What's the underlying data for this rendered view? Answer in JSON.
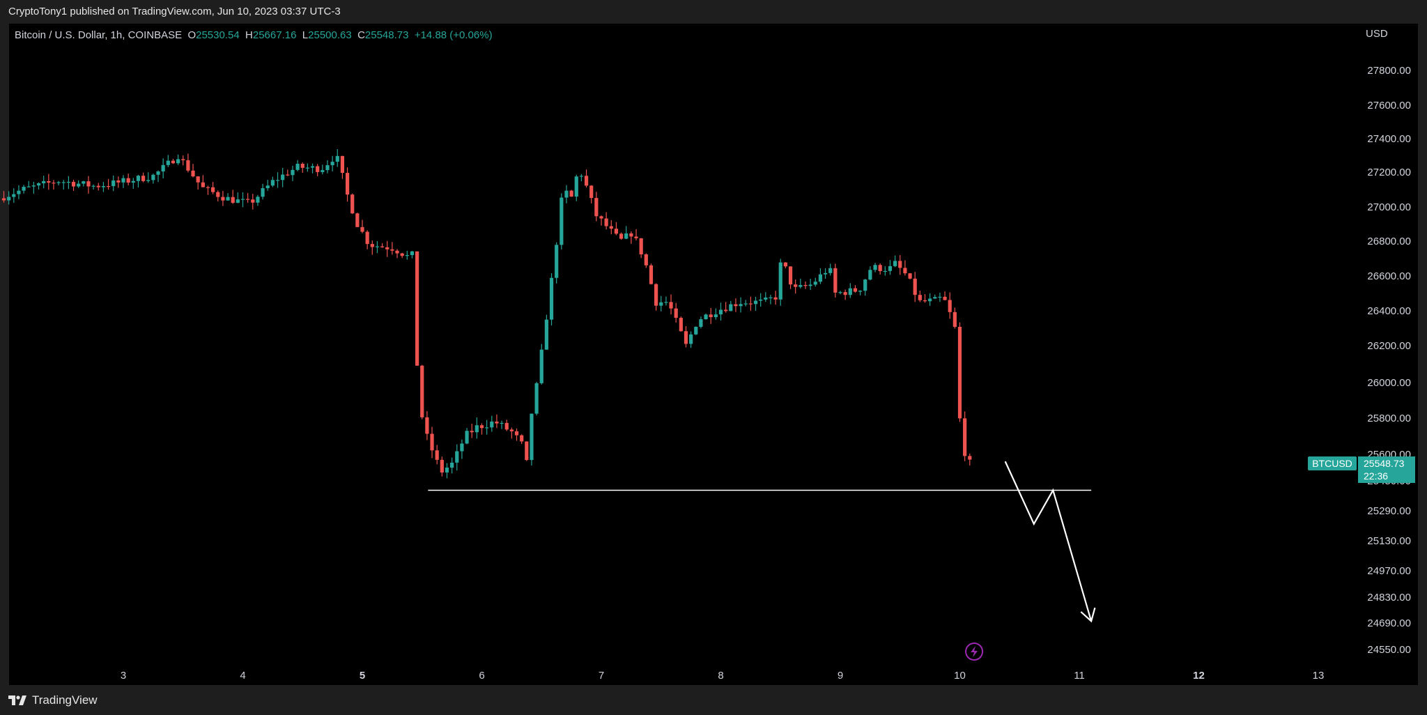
{
  "header": {
    "published_text": "CryptoTony1 published on TradingView.com, Jun 10, 2023 03:37 UTC-3"
  },
  "legend": {
    "symbol": "Bitcoin / U.S. Dollar, 1h, COINBASE",
    "o_label": "O",
    "o_value": "25530.54",
    "h_label": "H",
    "h_value": "25667.16",
    "l_label": "L",
    "l_value": "25500.63",
    "c_label": "C",
    "c_value": "25548.73",
    "change": "+14.88 (+0.06%)"
  },
  "currency": "USD",
  "colors": {
    "up": "#26a69a",
    "down": "#ef5350",
    "background": "#000000",
    "axis_text": "#d1d4dc",
    "drawing": "#ffffff",
    "event_icon": "#9c27b0"
  },
  "price_badge": {
    "symbol_label": "BTCUSD",
    "price": "25548.73",
    "countdown": "22:36"
  },
  "footer": {
    "brand": "TradingView"
  },
  "chart_data": {
    "type": "candlestick",
    "symbol": "BTCUSD",
    "interval": "1h",
    "exchange": "COINBASE",
    "y_ticks": [
      {
        "label": "27800.00",
        "value": 27800
      },
      {
        "label": "27600.00",
        "value": 27600
      },
      {
        "label": "27400.00",
        "value": 27400
      },
      {
        "label": "27200.00",
        "value": 27200
      },
      {
        "label": "27000.00",
        "value": 27000
      },
      {
        "label": "26800.00",
        "value": 26800
      },
      {
        "label": "26600.00",
        "value": 26600
      },
      {
        "label": "26400.00",
        "value": 26400
      },
      {
        "label": "26200.00",
        "value": 26200
      },
      {
        "label": "26000.00",
        "value": 26000
      },
      {
        "label": "25800.00",
        "value": 25800
      },
      {
        "label": "25600.00",
        "value": 25600
      },
      {
        "label": "25450.00",
        "value": 25450
      },
      {
        "label": "25290.00",
        "value": 25290
      },
      {
        "label": "25130.00",
        "value": 25130
      },
      {
        "label": "24970.00",
        "value": 24970
      },
      {
        "label": "24830.00",
        "value": 24830
      },
      {
        "label": "24690.00",
        "value": 24690
      },
      {
        "label": "24550.00",
        "value": 24550
      }
    ],
    "x_ticks": [
      {
        "label": "3",
        "day": 3,
        "bold": false
      },
      {
        "label": "4",
        "day": 4,
        "bold": false
      },
      {
        "label": "5",
        "day": 5,
        "bold": true
      },
      {
        "label": "6",
        "day": 6,
        "bold": false
      },
      {
        "label": "7",
        "day": 7,
        "bold": false
      },
      {
        "label": "8",
        "day": 8,
        "bold": false
      },
      {
        "label": "9",
        "day": 9,
        "bold": false
      },
      {
        "label": "10",
        "day": 10,
        "bold": false
      },
      {
        "label": "11",
        "day": 11,
        "bold": false
      },
      {
        "label": "12",
        "day": 12,
        "bold": true
      },
      {
        "label": "13",
        "day": 13,
        "bold": false
      }
    ],
    "path_points": [
      [
        2.0,
        27050
      ],
      [
        2.2,
        27100
      ],
      [
        2.5,
        27150
      ],
      [
        2.8,
        27120
      ],
      [
        3.0,
        27140
      ],
      [
        3.3,
        27180
      ],
      [
        3.5,
        27300
      ],
      [
        3.7,
        27110
      ],
      [
        3.9,
        27050
      ],
      [
        4.1,
        27020
      ],
      [
        4.3,
        27150
      ],
      [
        4.5,
        27230
      ],
      [
        4.7,
        27220
      ],
      [
        4.82,
        27300
      ],
      [
        4.85,
        27250
      ],
      [
        4.9,
        27100
      ],
      [
        5.0,
        26900
      ],
      [
        5.1,
        26780
      ],
      [
        5.3,
        26760
      ],
      [
        5.45,
        26700
      ],
      [
        5.49,
        26790
      ],
      [
        5.5,
        26100
      ],
      [
        5.55,
        25750
      ],
      [
        5.7,
        25500
      ],
      [
        5.8,
        25550
      ],
      [
        5.9,
        25700
      ],
      [
        6.0,
        25750
      ],
      [
        6.15,
        25780
      ],
      [
        6.3,
        25720
      ],
      [
        6.38,
        25650
      ],
      [
        6.42,
        25540
      ],
      [
        6.45,
        25800
      ],
      [
        6.52,
        26050
      ],
      [
        6.6,
        26450
      ],
      [
        6.65,
        26700
      ],
      [
        6.72,
        27100
      ],
      [
        6.8,
        27050
      ],
      [
        6.85,
        27230
      ],
      [
        6.9,
        27150
      ],
      [
        7.0,
        26950
      ],
      [
        7.2,
        26800
      ],
      [
        7.3,
        26850
      ],
      [
        7.4,
        26700
      ],
      [
        7.5,
        26450
      ],
      [
        7.6,
        26450
      ],
      [
        7.75,
        26200
      ],
      [
        7.85,
        26350
      ],
      [
        8.0,
        26400
      ],
      [
        8.2,
        26450
      ],
      [
        8.4,
        26450
      ],
      [
        8.5,
        26480
      ],
      [
        8.55,
        26700
      ],
      [
        8.65,
        26520
      ],
      [
        8.8,
        26550
      ],
      [
        8.95,
        26650
      ],
      [
        9.0,
        26500
      ],
      [
        9.2,
        26520
      ],
      [
        9.3,
        26650
      ],
      [
        9.45,
        26640
      ],
      [
        9.5,
        26670
      ],
      [
        9.6,
        26600
      ],
      [
        9.7,
        26450
      ],
      [
        9.85,
        26460
      ],
      [
        9.9,
        26480
      ],
      [
        9.95,
        26400
      ],
      [
        10.0,
        26300
      ],
      [
        10.04,
        25800
      ],
      [
        10.1,
        25540
      ],
      [
        10.12,
        25548.73
      ]
    ],
    "support_level": 25400,
    "support_range_days": [
      5.55,
      11.1
    ],
    "projection_path": [
      [
        10.38,
        25560
      ],
      [
        10.62,
        25220
      ],
      [
        10.78,
        25400
      ],
      [
        11.1,
        24700
      ]
    ],
    "event_marker_day": 10.12,
    "last_price": 25548.73
  }
}
